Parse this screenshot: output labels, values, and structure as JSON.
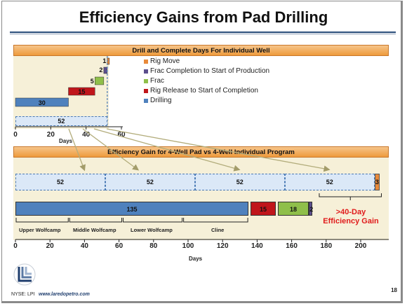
{
  "title": "Efficiency Gains from Pad Drilling",
  "colors": {
    "drilling": "#4f81bd",
    "rig_release": "#c0161b",
    "frac": "#8fbf4a",
    "frac_completion": "#5b4e8c",
    "rig_move": "#e8893a"
  },
  "single_well": {
    "band_title": "Drill and Complete Days For Individual Well",
    "total_label": "52",
    "axis_ticks": [
      "0",
      "20",
      "40",
      "60"
    ],
    "axis_title": "Days"
  },
  "legend": [
    {
      "label": "Rig Move",
      "color": "#e8893a",
      "icon": "legend-swatch"
    },
    {
      "label": "Frac Completion to Start of Production",
      "color": "#5b4e8c",
      "icon": "legend-swatch"
    },
    {
      "label": "Frac",
      "color": "#8fbf4a",
      "icon": "legend-swatch"
    },
    {
      "label": "Rig Release to Start of Completion",
      "color": "#c0161b",
      "icon": "legend-swatch"
    },
    {
      "label": "Drilling",
      "color": "#4f81bd",
      "icon": "legend-swatch"
    }
  ],
  "pad": {
    "band_title": "Efficiency Gain for 4-Well Pad vs 4-Well Individual Program",
    "brackets": [
      "Upper Wolfcamp",
      "Middle Wolfcamp",
      "Lower Wolfcamp",
      "Cline"
    ],
    "gain_line1": ">40-Day",
    "gain_line2": "Efficiency Gain",
    "axis_ticks": [
      "0",
      "20",
      "40",
      "60",
      "80",
      "100",
      "120",
      "140",
      "160",
      "180",
      "200"
    ],
    "axis_title": "Days"
  },
  "footer": {
    "ticker": "NYSE: LPI",
    "url": "www.laredopetro.com",
    "page": "18"
  },
  "chart_data": [
    {
      "type": "bar",
      "title": "Drill and Complete Days For Individual Well",
      "xlabel": "Days",
      "xlim": [
        0,
        60
      ],
      "series": [
        {
          "name": "Drilling",
          "start": 0,
          "value": 30
        },
        {
          "name": "Rig Release to Start of Completion",
          "start": 30,
          "value": 15
        },
        {
          "name": "Frac",
          "start": 45,
          "value": 5
        },
        {
          "name": "Frac Completion to Start of Production",
          "start": 50,
          "value": 2
        },
        {
          "name": "Rig Move",
          "start": 52,
          "value": 1
        }
      ],
      "total": 52
    },
    {
      "type": "bar",
      "title": "Efficiency Gain for 4-Well Pad vs 4-Well Individual Program",
      "xlabel": "Days",
      "xlim": [
        0,
        210
      ],
      "individual_program": [
        {
          "label": "52",
          "start": 0,
          "value": 52
        },
        {
          "label": "52",
          "start": 52,
          "value": 52
        },
        {
          "label": "52",
          "start": 104,
          "value": 52
        },
        {
          "label": "52",
          "start": 156,
          "value": 52
        },
        {
          "label": "3",
          "start": 208,
          "value": 3,
          "series": "Rig Move"
        }
      ],
      "pad_program": [
        {
          "label": "135",
          "start": 0,
          "value": 135,
          "series": "Drilling"
        },
        {
          "label": "15",
          "start": 136,
          "value": 15,
          "series": "Rig Release to Start of Completion"
        },
        {
          "label": "18",
          "start": 152,
          "value": 18,
          "series": "Frac"
        },
        {
          "label": "2",
          "start": 170,
          "value": 2,
          "series": "Frac Completion to Start of Production"
        }
      ],
      "wells": [
        {
          "name": "Upper Wolfcamp",
          "start": 0,
          "end": 31
        },
        {
          "name": "Middle Wolfcamp",
          "start": 31,
          "end": 62
        },
        {
          "name": "Lower Wolfcamp",
          "start": 62,
          "end": 97
        },
        {
          "name": "Cline",
          "start": 97,
          "end": 135
        }
      ],
      "annotation": ">40-Day Efficiency Gain"
    }
  ]
}
